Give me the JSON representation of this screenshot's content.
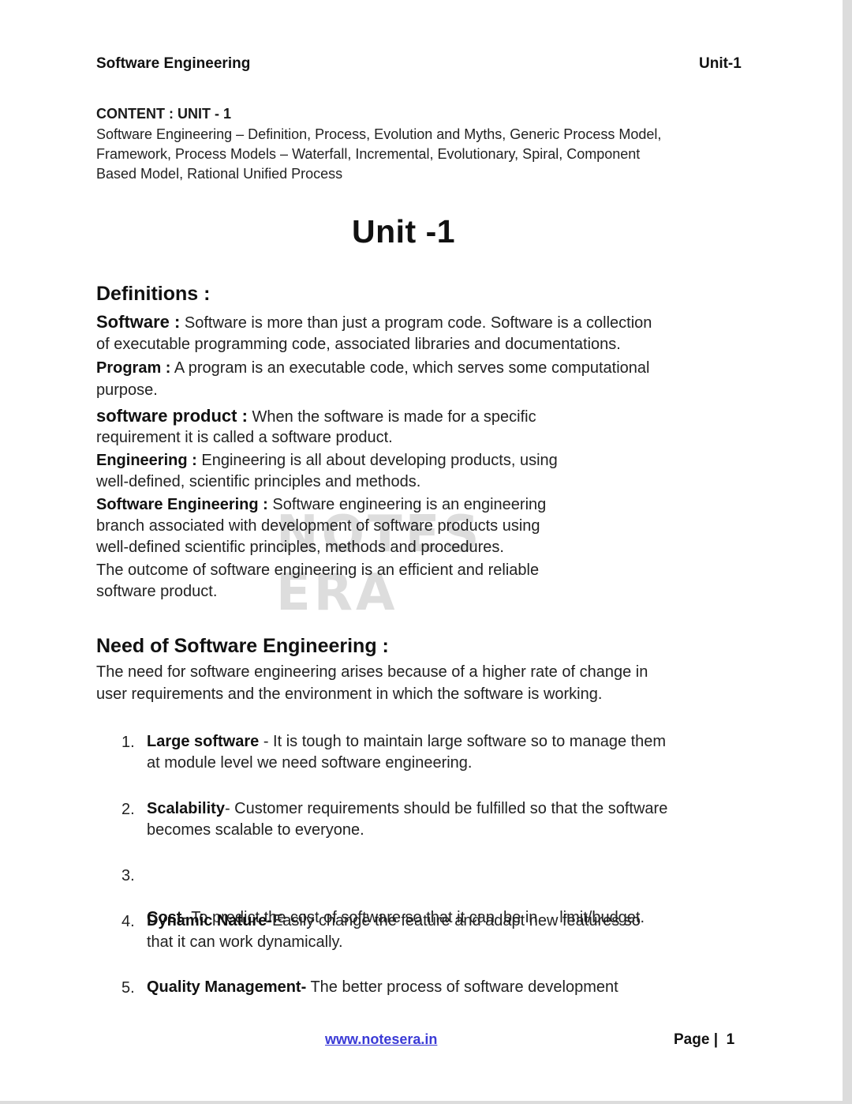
{
  "header": {
    "left": "Software Engineering",
    "right": "Unit-1"
  },
  "content": {
    "heading": "CONTENT  : UNIT - 1",
    "lines": [
      "Software Engineering – Definition, Process, Evolution and Myths, Generic Process Model,",
      "Framework, Process Models – Waterfall, Incremental, Evolutionary, Spiral, Component",
      "Based Model, Rational Unified Process"
    ]
  },
  "unit_title": "Unit -1",
  "definitions": {
    "title": "Definitions :",
    "software_term": "Software :",
    "software_line1": " Software is more than just a program code. Software is a collection",
    "software_line2": "of executable programming code, associated libraries and documentations.",
    "program_term": "Program :",
    "program_line1": " A program is an executable code, which serves some computational",
    "program_line2": "purpose.",
    "product_term": "software  product  :",
    "product_line1": " When  the  software  is  made  for  a  specific",
    "product_line2": "requirement it is called a software product.",
    "engineering_term": "Engineering  :",
    "engineering_line1": " Engineering  is  all  about  developing  products,  using",
    "engineering_line2": "well-defined, scientific principles and methods.",
    "se_term": "Software Engineering :",
    "se_line1": " Software engineering is an engineering",
    "se_line2": "branch associated with development of software products using",
    "se_line3": "well-defined scientific principles, methods and procedures.",
    "outcome_line1": "The outcome of software engineering is an efficient and reliable",
    "outcome_line2": "software product."
  },
  "watermark": "NOTES ERA",
  "need": {
    "title": "Need of Software Engineering :",
    "line1": "The need for software engineering arises because of a higher rate of change in",
    "line2": "user requirements and the environment in which the software is working.",
    "items": [
      {
        "num": "1.",
        "term": "Large software",
        "line1": " - It is tough to maintain large software so to manage them",
        "line2": "at module level we need software engineering."
      },
      {
        "num": "2.",
        "term": "Scalability",
        "line1": "- Customer requirements should be fulfilled so that the software",
        "line2": "becomes scalable to everyone."
      },
      {
        "num": "3.",
        "term": "Cost",
        "line1": "- To predict the cost of software so that it can  be in     limit/budget.",
        "line2": ""
      },
      {
        "num": "4.",
        "term": "Dynamic Nature-",
        "line1": "Easily change the feature and adapt new features so",
        "line2": "that it can work dynamically."
      },
      {
        "num": "5.",
        "term": "Quality Management-",
        "line1": " The better process of software development",
        "line2": ""
      }
    ]
  },
  "footer": {
    "link": "www.notesera.in",
    "page": "Page |  1"
  }
}
